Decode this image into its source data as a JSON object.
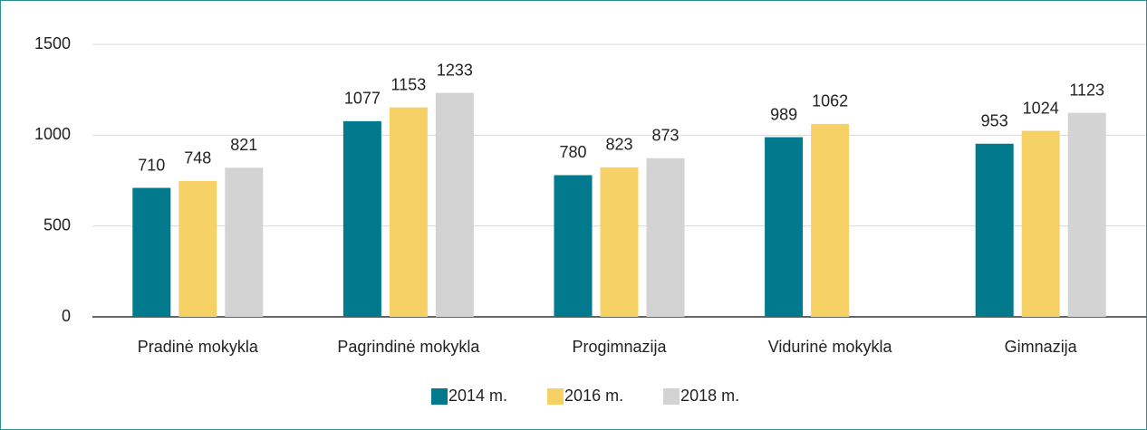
{
  "chart_data": {
    "type": "bar",
    "categories": [
      "Pradinė mokykla",
      "Pagrindinė mokykla",
      "Progimnazija",
      "Vidurinė mokykla",
      "Gimnazija"
    ],
    "series": [
      {
        "name": "2014 m.",
        "color": "#007a8c",
        "values": [
          710,
          1077,
          780,
          989,
          953
        ]
      },
      {
        "name": "2016 m.",
        "color": "#f5d166",
        "values": [
          748,
          1153,
          823,
          1062,
          1024
        ]
      },
      {
        "name": "2018 m.",
        "color": "#d3d3d3",
        "values": [
          821,
          1233,
          873,
          null,
          1123
        ]
      }
    ],
    "ylim": [
      0,
      1500
    ],
    "yticks": [
      0,
      500,
      1000,
      1500
    ],
    "grid": true,
    "legend": "bottom"
  }
}
